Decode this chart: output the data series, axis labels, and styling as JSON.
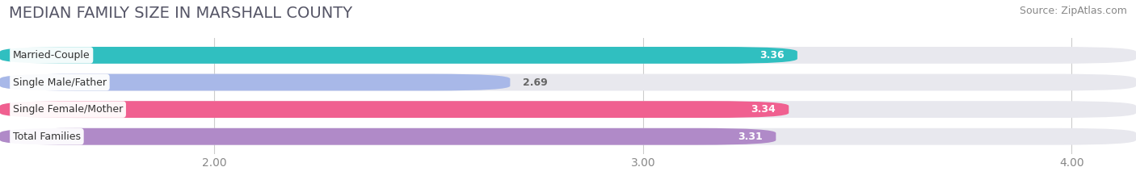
{
  "title": "MEDIAN FAMILY SIZE IN MARSHALL COUNTY",
  "source": "Source: ZipAtlas.com",
  "categories": [
    "Married-Couple",
    "Single Male/Father",
    "Single Female/Mother",
    "Total Families"
  ],
  "values": [
    3.36,
    2.69,
    3.34,
    3.31
  ],
  "bar_colors": [
    "#30bfc0",
    "#a8b8e8",
    "#f06090",
    "#b08ac8"
  ],
  "bar_labels": [
    "3.36",
    "2.69",
    "3.34",
    "3.31"
  ],
  "xmin": 1.5,
  "xmax": 4.15,
  "xticks": [
    2.0,
    3.0,
    4.0
  ],
  "xtick_labels": [
    "2.00",
    "3.00",
    "4.00"
  ],
  "bar_height": 0.62,
  "background_color": "#ffffff",
  "bg_bar_color": "#e8e8ee",
  "title_fontsize": 14,
  "source_fontsize": 9,
  "tick_fontsize": 10,
  "bar_label_fontsize": 9,
  "category_fontsize": 9,
  "label_value_color_inside": "#ffffff",
  "label_value_color_outside": "#666666"
}
